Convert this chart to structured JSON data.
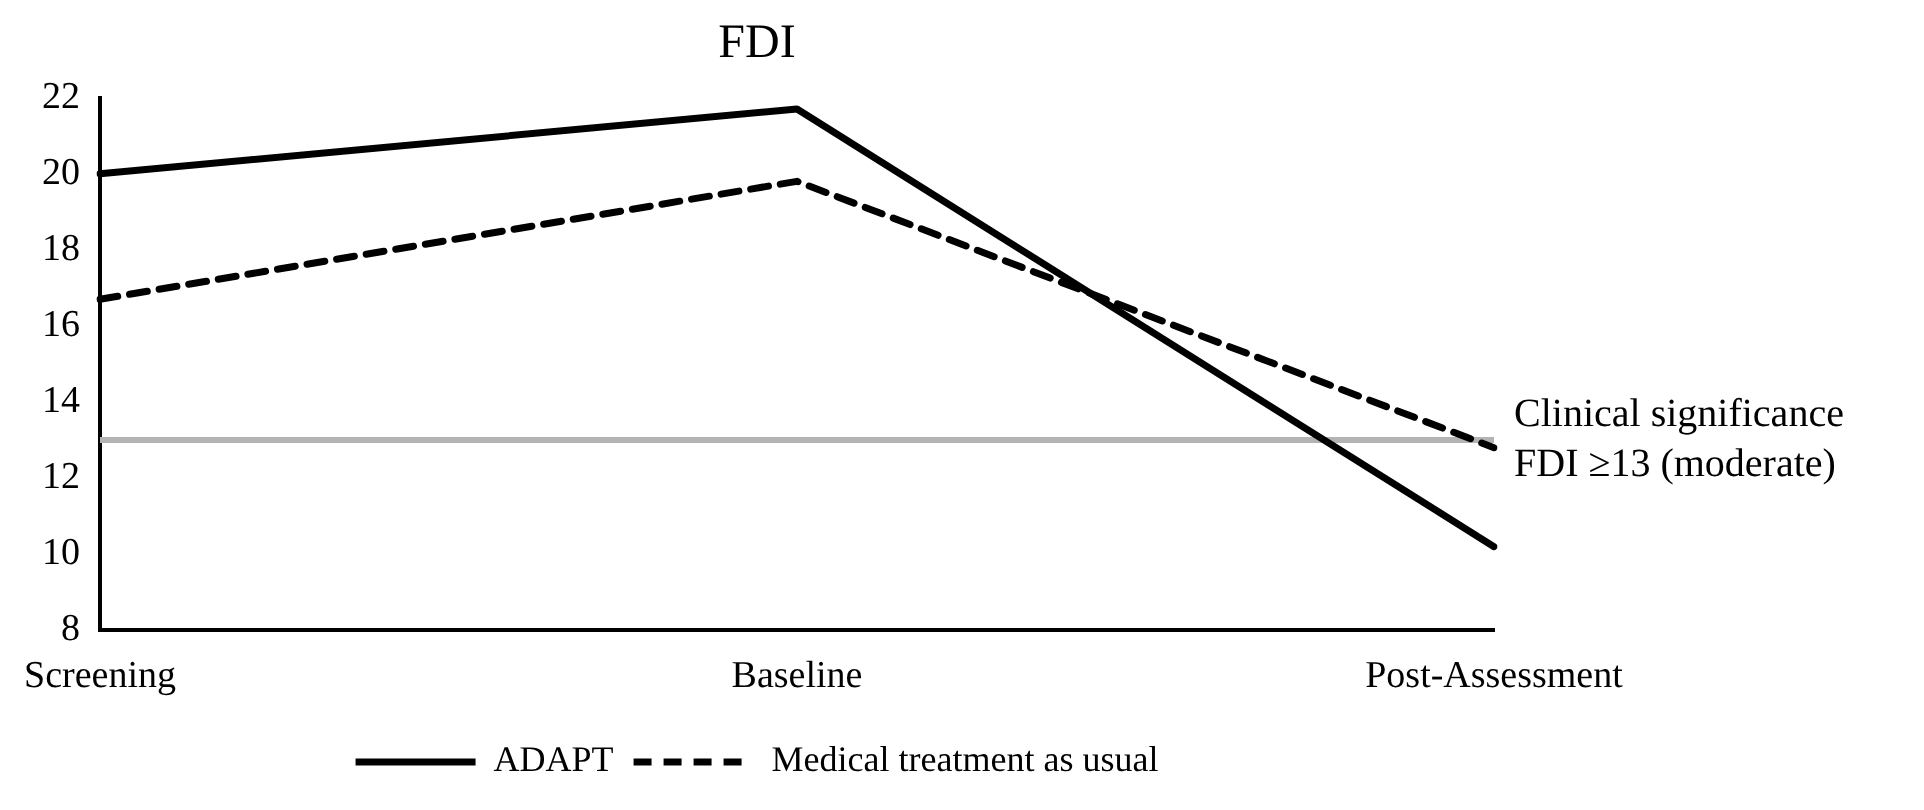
{
  "chart_data": {
    "type": "line",
    "title": "FDI",
    "categories": [
      "Screening",
      "Baseline",
      "Post-Assessment"
    ],
    "series": [
      {
        "name": "ADAPT",
        "color": "#000000",
        "line_style": "solid",
        "values": [
          20.0,
          21.7,
          10.2
        ]
      },
      {
        "name": "Medical treatment as usual",
        "color": "#000000",
        "line_style": "dashed",
        "values": [
          16.7,
          19.8,
          12.8
        ]
      }
    ],
    "ylim": [
      8,
      22
    ],
    "yticks": [
      8,
      10,
      12,
      14,
      16,
      18,
      20,
      22
    ],
    "ref_lines": [
      {
        "axis": "y",
        "value": 13,
        "label": "Clinical significance\nFDI ≥13 (moderate)",
        "color": "#b3b3b3"
      }
    ],
    "grid": false,
    "legend": "bottom",
    "marker": "none"
  }
}
